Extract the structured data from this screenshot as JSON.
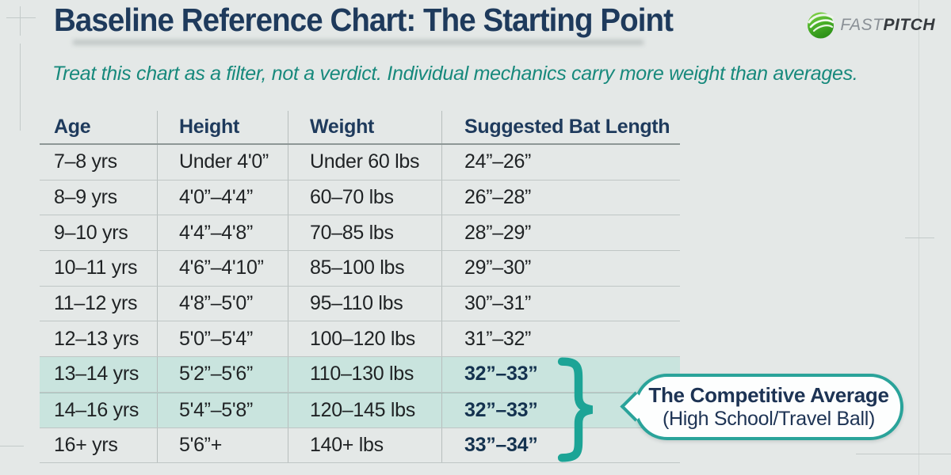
{
  "header": {
    "title": "Baseline Reference Chart: The Starting Point",
    "subtitle": "Treat this chart as a filter, not a verdict. Individual mechanics carry more weight than averages."
  },
  "logo": {
    "brand_fast": "FAST",
    "brand_pitch": "PITCH",
    "icon": "green-swirl-ball-icon"
  },
  "callout": {
    "line1": "The Competitive Average",
    "line2": "(High School/Travel Ball)"
  },
  "colors": {
    "background": "#e4e8e7",
    "title_navy": "#1e3a5c",
    "subtitle_teal": "#17897c",
    "accent_teal": "#2aa39a",
    "row_highlight": "#c9e4de",
    "grid_line": "#b7bebd",
    "body_text": "#1f2224"
  },
  "chart_data": {
    "type": "table",
    "title": "Baseline Reference Chart: The Starting Point",
    "columns": [
      "Age",
      "Height",
      "Weight",
      "Suggested Bat Length"
    ],
    "rows": [
      [
        "7–8 yrs",
        "Under 4'0”",
        "Under 60 lbs",
        "24”–26”"
      ],
      [
        "8–9 yrs",
        "4'0”–4'4”",
        "60–70 lbs",
        "26”–28”"
      ],
      [
        "9–10 yrs",
        "4'4”–4'8”",
        "70–85 lbs",
        "28”–29”"
      ],
      [
        "10–11 yrs",
        "4'6”–4'10”",
        "85–100 lbs",
        "29”–30”"
      ],
      [
        "11–12 yrs",
        "4'8”–5'0”",
        "95–110 lbs",
        "30”–31”"
      ],
      [
        "12–13 yrs",
        "5'0”–5'4”",
        "100–120 lbs",
        "31”–32”"
      ],
      [
        "13–14 yrs",
        "5'2”–5'6”",
        "110–130 lbs",
        "32”–33”"
      ],
      [
        "14–16 yrs",
        "5'4”–5'8”",
        "120–145 lbs",
        "32”–33”"
      ],
      [
        "16+ yrs",
        "5'6”+",
        "140+ lbs",
        "33”–34”"
      ]
    ],
    "highlighted_row_indexes": [
      6,
      7
    ],
    "bold_bat_row_indexes": [
      6,
      7,
      8
    ],
    "annotation": {
      "label": "The Competitive Average (High School/Travel Ball)",
      "applies_to_rows": [
        6,
        7,
        8
      ]
    },
    "legend_position": "none",
    "grid": true
  }
}
